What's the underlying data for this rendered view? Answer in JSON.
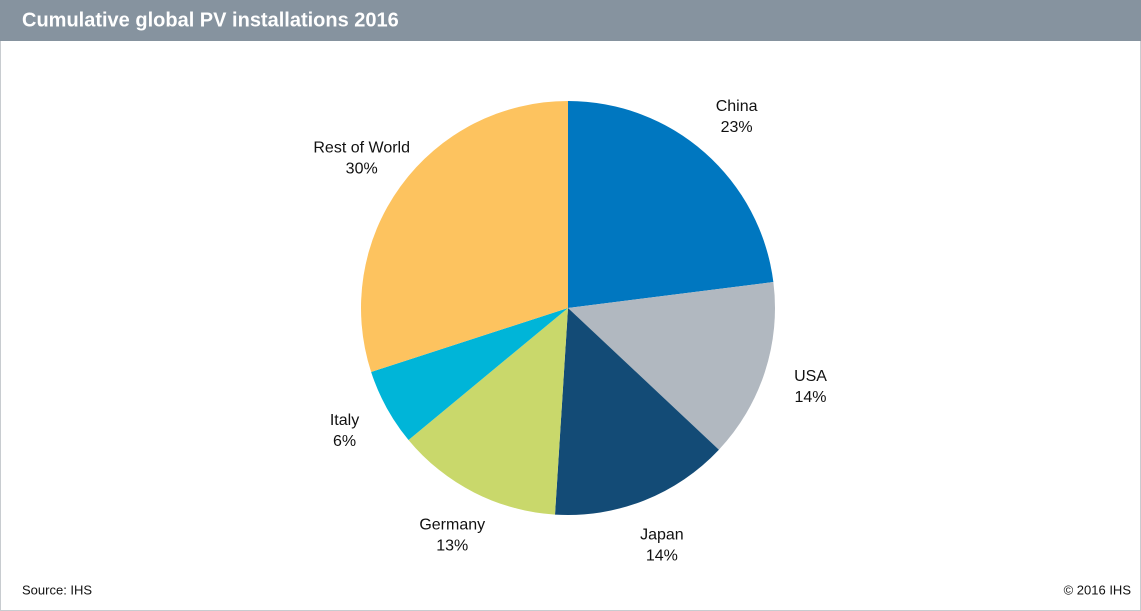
{
  "chart_data": {
    "type": "pie",
    "title": "Cumulative global PV installations 2016",
    "categories": [
      "China",
      "USA",
      "Japan",
      "Germany",
      "Italy",
      "Rest of World"
    ],
    "values": [
      23,
      14,
      14,
      13,
      6,
      30
    ],
    "value_labels": [
      "23%",
      "14%",
      "14%",
      "13%",
      "6%",
      "30%"
    ],
    "colors": [
      "#0077c0",
      "#b1b8c0",
      "#134b76",
      "#c9d86b",
      "#00b5d8",
      "#fdc35f"
    ],
    "source": "Source: IHS",
    "copyright": "© 2016 IHS"
  }
}
